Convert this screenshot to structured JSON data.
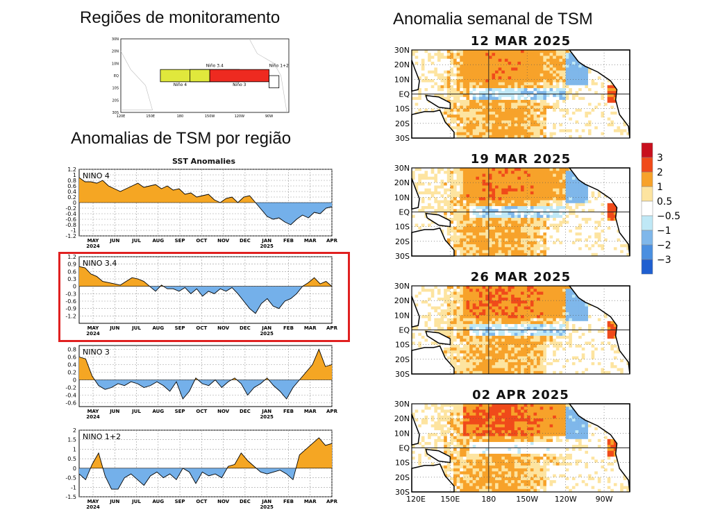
{
  "left": {
    "title_regions": "Regiões de monitoramento",
    "title_anomalies": "Anomalias de TSM por região",
    "sst_title": "SST Anomalies",
    "region_map": {
      "lat_labels": [
        "30N",
        "20N",
        "10N",
        "EQ",
        "10S",
        "20S",
        "30S"
      ],
      "lon_labels": [
        "120E",
        "150E",
        "180",
        "150W",
        "120W",
        "90W"
      ],
      "boxes": [
        {
          "name": "Niño 4",
          "lon": [
            160,
            210
          ],
          "lat": [
            -5,
            5
          ],
          "color": "#e0e83c"
        },
        {
          "name": "Niño 3.4",
          "lon": [
            190,
            240
          ],
          "lat": [
            -5,
            5
          ],
          "color": "none"
        },
        {
          "name": "Niño 3",
          "lon": [
            210,
            270
          ],
          "lat": [
            -5,
            5
          ],
          "color": "#ee2a20"
        },
        {
          "name": "Niño 1+2",
          "lon": [
            270,
            280
          ],
          "lat": [
            -10,
            0
          ],
          "color": "none"
        }
      ]
    }
  },
  "right": {
    "title": "Anomalia semanal de TSM",
    "maps": [
      {
        "date": "12 MAR 2025"
      },
      {
        "date": "19 MAR 2025"
      },
      {
        "date": "26 MAR 2025"
      },
      {
        "date": "02 APR 2025"
      }
    ],
    "lat_labels": [
      "30N",
      "20N",
      "10N",
      "EQ",
      "10S",
      "20S",
      "30S"
    ],
    "lon_labels": [
      "120E",
      "150E",
      "180",
      "150W",
      "120W",
      "90W"
    ],
    "legend": {
      "labels": [
        "3",
        "2",
        "1",
        "0.5",
        "−0.5",
        "−1",
        "−2",
        "−3"
      ],
      "colors": [
        "#c8101e",
        "#f04a1a",
        "#f7a22a",
        "#fde4a0",
        "#ffffff",
        "#bfe8f6",
        "#7fb7ea",
        "#4a8fe0",
        "#1f5fd0"
      ]
    }
  },
  "chart_data": [
    {
      "type": "area",
      "name": "NINO 4",
      "x_tick_labels": [
        "MAY",
        "JUN",
        "JUL",
        "AUG",
        "SEP",
        "OCT",
        "NOV",
        "DEC",
        "JAN",
        "FEB",
        "MAR",
        "APR"
      ],
      "year_labels": [
        "2024",
        "2025"
      ],
      "ylim": [
        -1.2,
        1.2
      ],
      "y_ticks": [
        -1.2,
        -1,
        -0.8,
        -0.6,
        -0.4,
        -0.2,
        0,
        0.2,
        0.4,
        0.6,
        0.8,
        1,
        1.2
      ],
      "values": [
        0.9,
        0.75,
        0.75,
        0.7,
        0.8,
        0.6,
        0.5,
        0.4,
        0.5,
        0.6,
        0.7,
        0.55,
        0.6,
        0.65,
        0.5,
        0.6,
        0.45,
        0.5,
        0.3,
        0.35,
        0.2,
        0.25,
        0.3,
        0.1,
        0.0,
        0.15,
        0.2,
        0.0,
        0.2,
        0.25,
        0.0,
        -0.25,
        -0.5,
        -0.6,
        -0.55,
        -0.7,
        -0.8,
        -0.6,
        -0.45,
        -0.55,
        -0.35,
        -0.4,
        -0.2,
        -0.15
      ]
    },
    {
      "type": "area",
      "name": "NINO 3.4",
      "x_tick_labels": [
        "MAY",
        "JUN",
        "JUL",
        "AUG",
        "SEP",
        "OCT",
        "NOV",
        "DEC",
        "JAN",
        "FEB",
        "MAR",
        "APR"
      ],
      "year_labels": [
        "2024",
        "2025"
      ],
      "ylim": [
        -1.5,
        1.2
      ],
      "y_ticks": [
        -1.2,
        -0.9,
        -0.6,
        -0.3,
        0,
        0.3,
        0.6,
        0.9,
        1.2
      ],
      "values": [
        0.8,
        0.75,
        0.5,
        0.4,
        0.2,
        0.15,
        0.1,
        0.05,
        0.2,
        0.35,
        0.3,
        0.2,
        0.0,
        -0.2,
        0.05,
        -0.1,
        -0.1,
        -0.2,
        -0.05,
        -0.3,
        -0.1,
        -0.4,
        -0.2,
        -0.3,
        -0.1,
        -0.2,
        -0.05,
        -0.3,
        -0.6,
        -0.9,
        -1.1,
        -0.7,
        -0.5,
        -0.8,
        -0.9,
        -0.6,
        -0.5,
        -0.3,
        0.0,
        0.15,
        0.35,
        0.1,
        0.2,
        0.0
      ]
    },
    {
      "type": "area",
      "name": "NINO 3",
      "x_tick_labels": [
        "MAY",
        "JUN",
        "JUL",
        "AUG",
        "SEP",
        "OCT",
        "NOV",
        "DEC",
        "JAN",
        "FEB",
        "MAR",
        "APR"
      ],
      "year_labels": [
        "2024",
        "2025"
      ],
      "ylim": [
        -0.7,
        0.9
      ],
      "y_ticks": [
        -0.6,
        -0.4,
        -0.2,
        0,
        0.2,
        0.4,
        0.6,
        0.8
      ],
      "values": [
        0.6,
        0.55,
        0.1,
        -0.15,
        -0.25,
        -0.2,
        -0.1,
        -0.15,
        -0.05,
        -0.1,
        -0.2,
        -0.15,
        -0.05,
        -0.15,
        -0.3,
        -0.05,
        -0.5,
        -0.3,
        0.05,
        -0.1,
        -0.15,
        0.0,
        -0.2,
        -0.05,
        0.05,
        -0.1,
        -0.4,
        -0.2,
        -0.1,
        0.05,
        -0.15,
        -0.3,
        -0.5,
        -0.2,
        0.0,
        0.2,
        0.4,
        0.8,
        0.35,
        0.4
      ]
    },
    {
      "type": "area",
      "name": "NINO 1+2",
      "x_tick_labels": [
        "MAY",
        "JUN",
        "JUL",
        "AUG",
        "SEP",
        "OCT",
        "NOV",
        "DEC",
        "JAN",
        "FEB",
        "MAR",
        "APR"
      ],
      "year_labels": [
        "2024",
        "2025"
      ],
      "ylim": [
        -1.5,
        2
      ],
      "y_ticks": [
        -1.5,
        -1,
        -0.5,
        0,
        0.5,
        1,
        1.5,
        2
      ],
      "values": [
        -0.3,
        -0.6,
        0.2,
        0.8,
        -0.4,
        -1.1,
        -1.1,
        -0.5,
        -0.3,
        -0.6,
        -0.9,
        -0.4,
        -0.2,
        -0.5,
        -0.3,
        -0.6,
        0.0,
        -0.2,
        -0.8,
        -0.2,
        -0.4,
        -0.3,
        -0.5,
        0.1,
        0.2,
        0.8,
        0.4,
        0.1,
        -0.2,
        -0.3,
        -0.2,
        -0.1,
        -0.3,
        -0.6,
        0.7,
        1.0,
        1.3,
        1.6,
        1.2,
        1.3
      ]
    }
  ]
}
